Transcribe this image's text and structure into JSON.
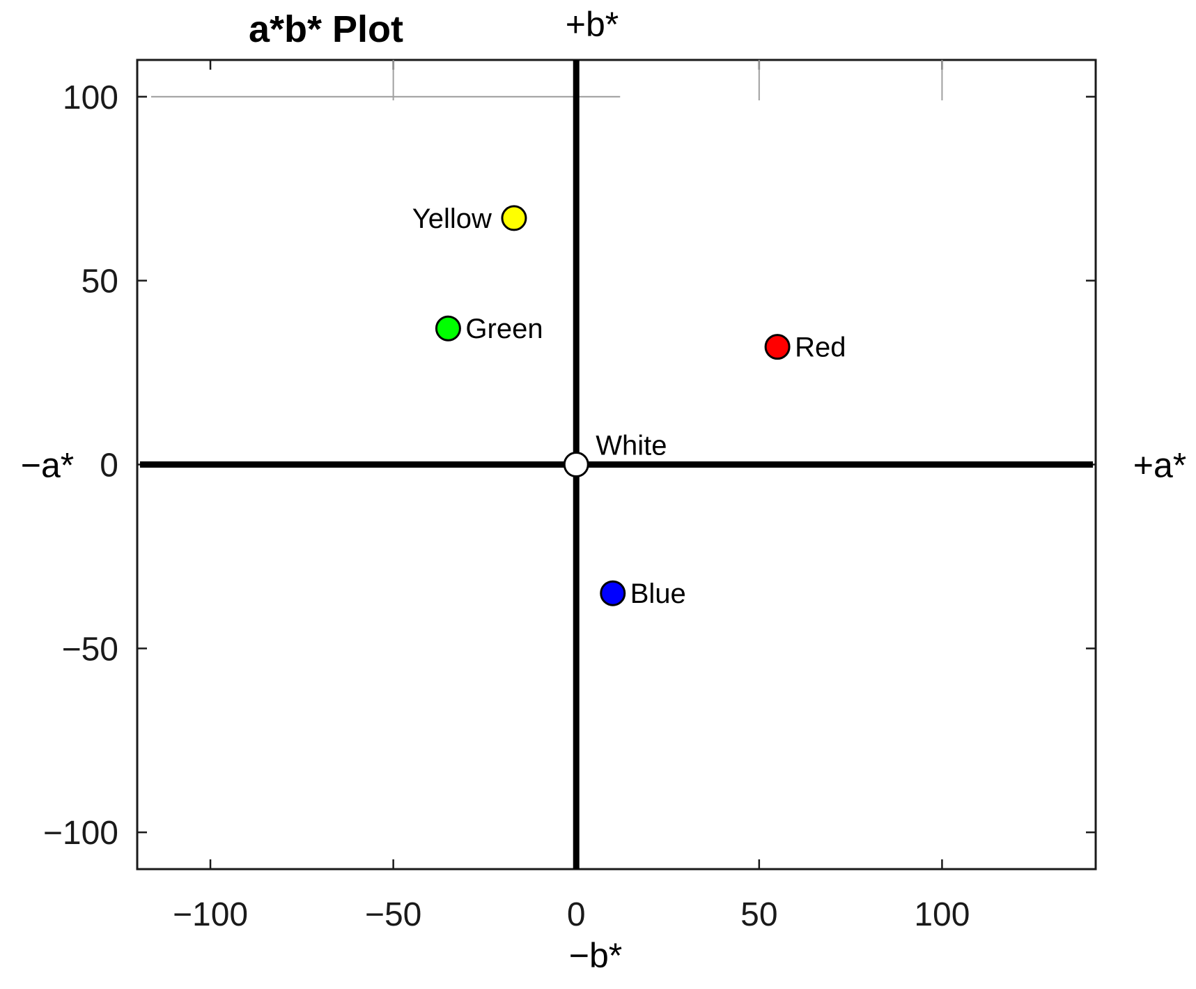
{
  "chart_data": {
    "type": "scatter",
    "title": "a*b* Plot",
    "xlim": [
      -120,
      142
    ],
    "ylim": [
      -110,
      110
    ],
    "x_ticks": [
      -100,
      -50,
      0,
      50,
      100
    ],
    "y_ticks": [
      -100,
      -50,
      0,
      50,
      100
    ],
    "x_tick_labels": [
      "−100",
      "−50",
      "0",
      "50",
      "100"
    ],
    "y_tick_labels": [
      "−100",
      "−50",
      "0",
      "50",
      "100"
    ],
    "axis_labels": {
      "positive_a": "+a*",
      "negative_a": "−a*",
      "positive_b": "+b*",
      "negative_b": "−b*"
    },
    "points": [
      {
        "name": "Yellow",
        "x": -17,
        "y": 67,
        "color": "#ffff00",
        "label_side": "left"
      },
      {
        "name": "Green",
        "x": -35,
        "y": 37,
        "color": "#00ff00",
        "label_side": "right"
      },
      {
        "name": "Red",
        "x": 55,
        "y": 32,
        "color": "#ff0000",
        "label_side": "right"
      },
      {
        "name": "White",
        "x": 0,
        "y": 0,
        "color": "#ffffff",
        "label_side": "above-right"
      },
      {
        "name": "Blue",
        "x": 10,
        "y": -35,
        "color": "#0000ff",
        "label_side": "right"
      }
    ],
    "grid": false,
    "legend": "none"
  }
}
